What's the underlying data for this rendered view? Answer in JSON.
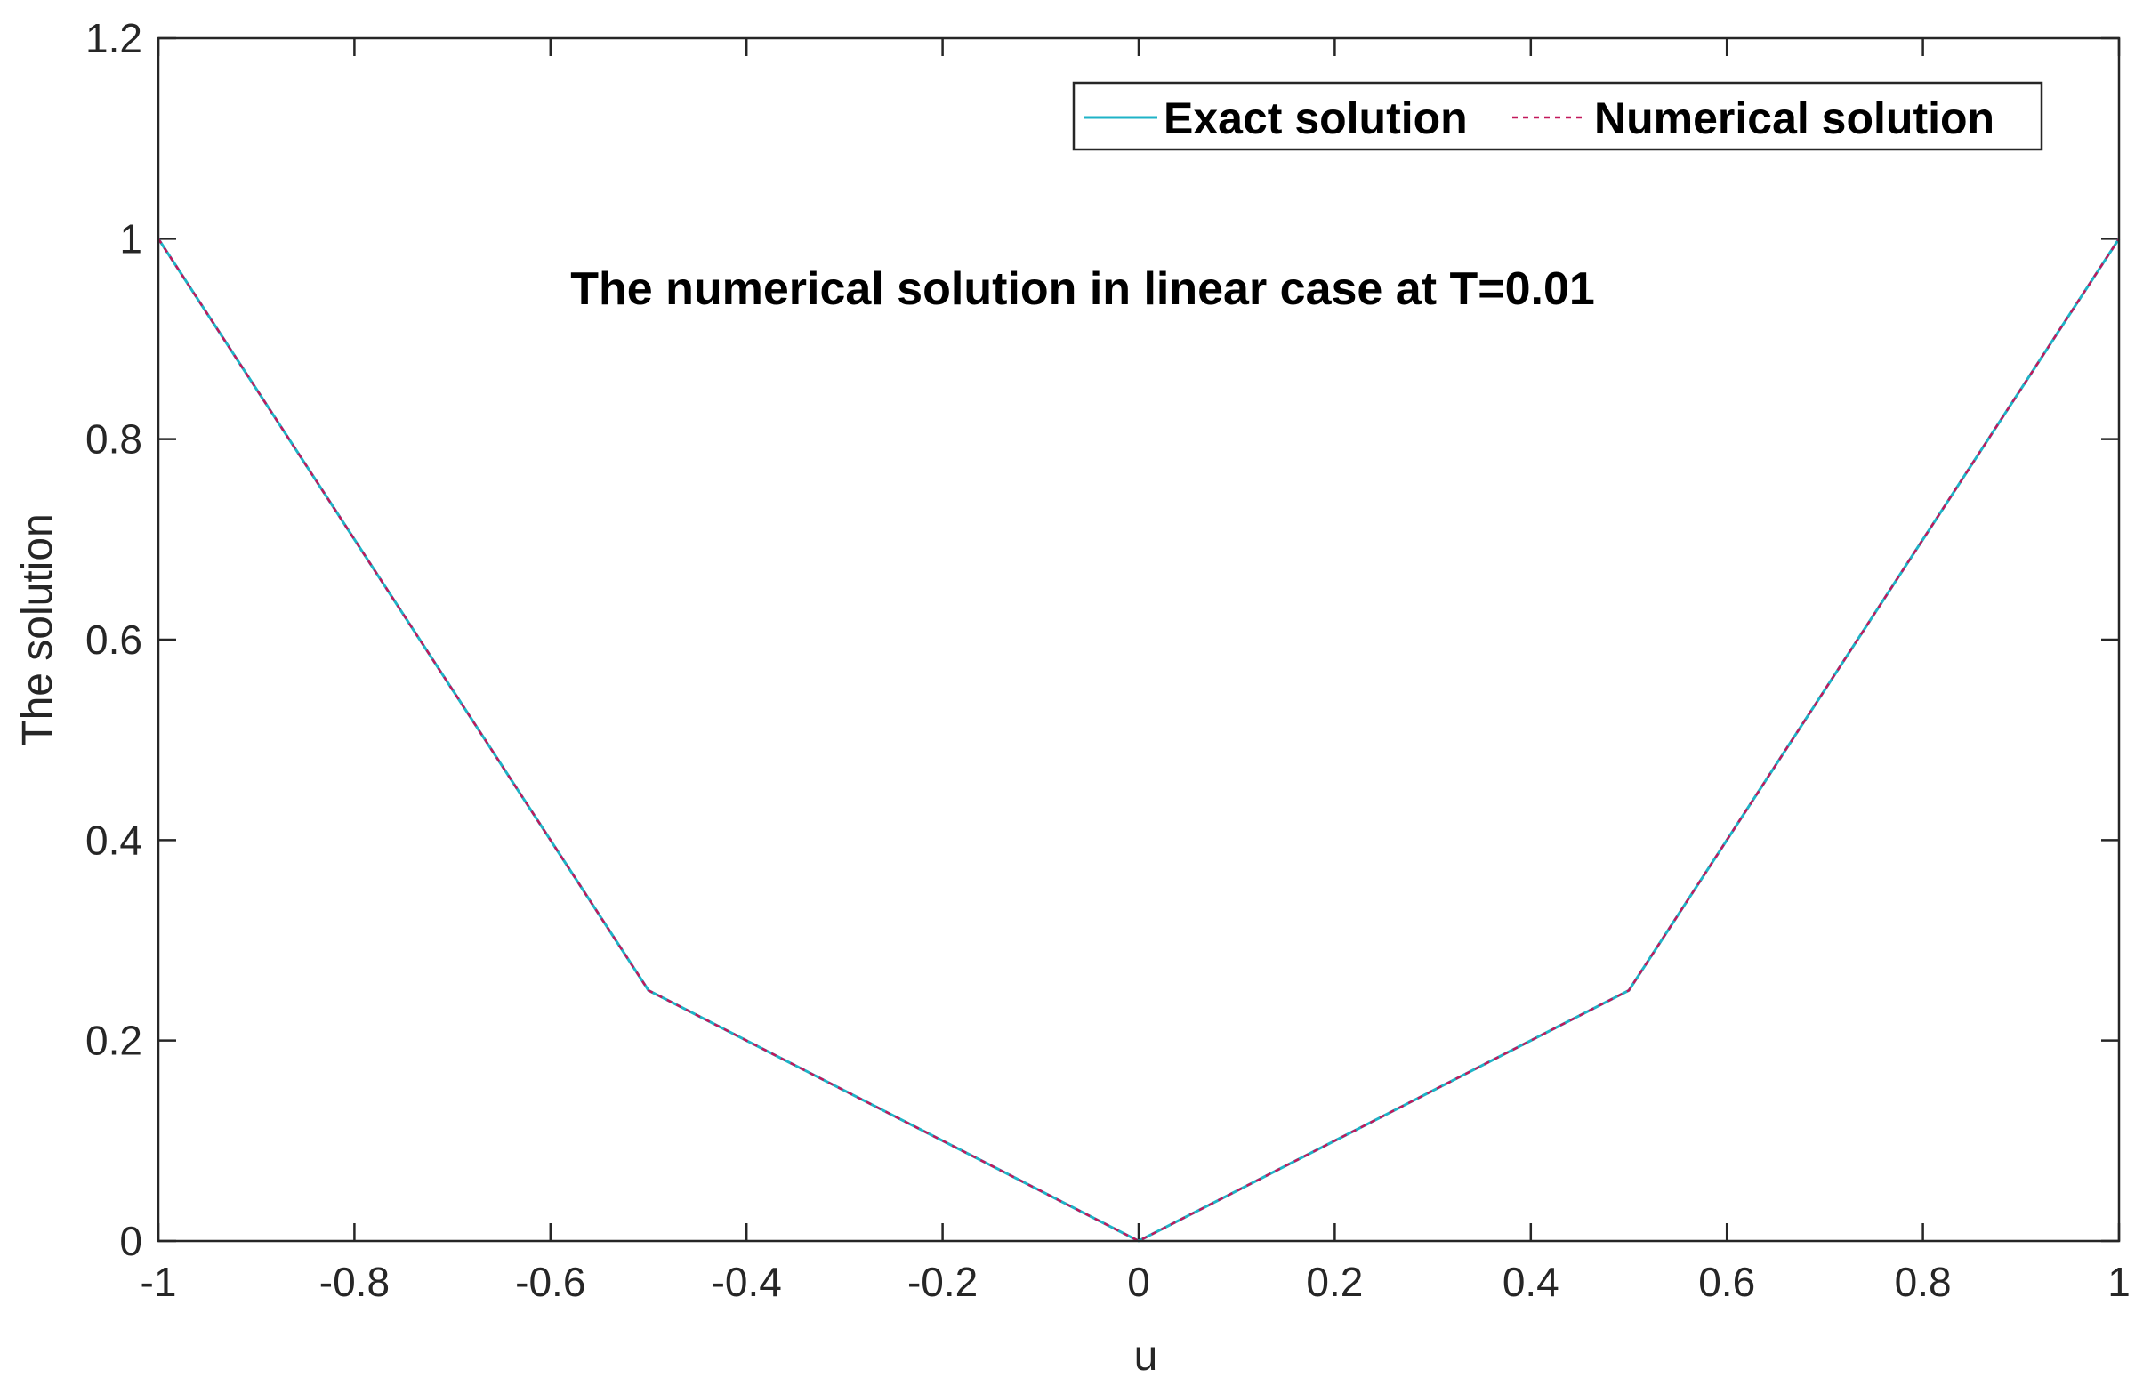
{
  "chart_data": {
    "type": "line",
    "title": "",
    "xlabel": "u",
    "ylabel": "The solution",
    "xlim": [
      -1,
      1
    ],
    "ylim": [
      0,
      1.2
    ],
    "xticks": [
      -1,
      -0.8,
      -0.6,
      -0.4,
      -0.2,
      0,
      0.2,
      0.4,
      0.6,
      0.8,
      1
    ],
    "xtick_labels": [
      "-1",
      "-0.8",
      "-0.6",
      "-0.4",
      "-0.2",
      "0",
      "0.2",
      "0.4",
      "0.6",
      "0.8",
      "1"
    ],
    "yticks": [
      0,
      0.2,
      0.4,
      0.6,
      0.8,
      1,
      1.2
    ],
    "ytick_labels": [
      "0",
      "0.2",
      "0.4",
      "0.6",
      "0.8",
      "1",
      "1.2"
    ],
    "grid": false,
    "legend_position": "top-right",
    "annotation": "The numerical solution in linear case at T=0.01",
    "series": [
      {
        "name": "Exact solution",
        "style": "solid",
        "color": "#1fb3c7",
        "x": [
          -1,
          -0.5,
          0,
          0.5,
          1
        ],
        "y": [
          1,
          0.25,
          0,
          0.25,
          1
        ]
      },
      {
        "name": "Numerical solution",
        "style": "dotted",
        "color": "#c2185b",
        "x": [
          -1,
          -0.5,
          0,
          0.5,
          1
        ],
        "y": [
          1,
          0.25,
          0,
          0.25,
          1
        ]
      }
    ]
  }
}
